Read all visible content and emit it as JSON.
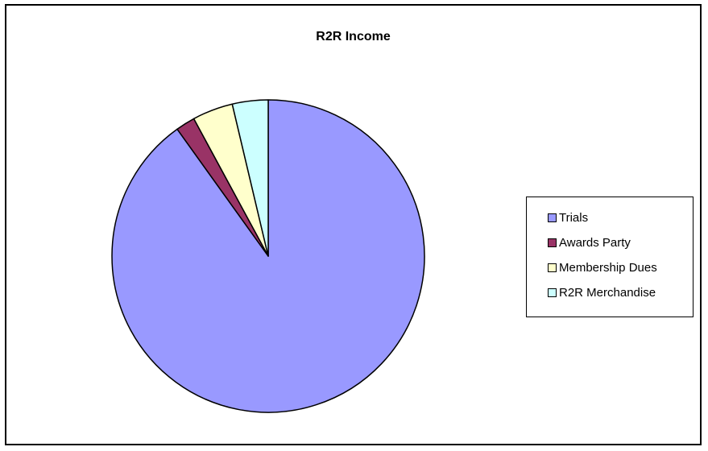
{
  "chart_data": {
    "type": "pie",
    "title": "R2R Income",
    "categories": [
      "Trials",
      "Awards Party",
      "Membership Dues",
      "R2R Merchandise"
    ],
    "values": [
      90.1,
      2.0,
      4.2,
      3.7
    ],
    "colors": [
      "#9999FF",
      "#993366",
      "#FFFFCC",
      "#CCFFFF"
    ],
    "start_angle_deg": 0,
    "direction": "clockwise",
    "legend_position": "right",
    "grid": false
  }
}
